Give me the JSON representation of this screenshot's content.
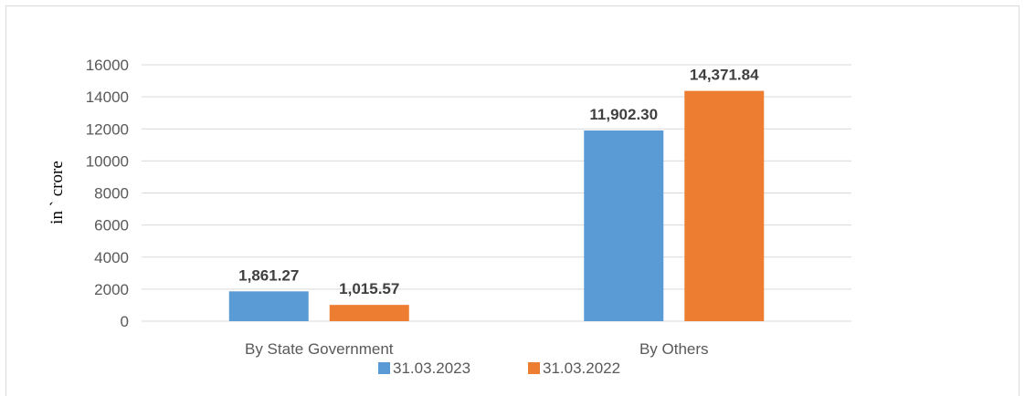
{
  "chart_data": {
    "type": "bar",
    "title": "",
    "xlabel": "",
    "ylabel": "in ` crore",
    "categories": [
      "By State Government",
      "By Others"
    ],
    "series": [
      {
        "name": "31.03.2023",
        "color": "#5b9bd5",
        "values": [
          1861.27,
          11902.3
        ],
        "labels": [
          "1,861.27",
          "11,902.30"
        ]
      },
      {
        "name": "31.03.2022",
        "color": "#ed7d31",
        "values": [
          1015.57,
          14371.84
        ],
        "labels": [
          "1,015.57",
          "14,371.84"
        ]
      }
    ],
    "ylim": [
      0,
      16000
    ],
    "yticks": [
      0,
      2000,
      4000,
      6000,
      8000,
      10000,
      12000,
      14000,
      16000
    ],
    "ytick_labels": [
      "0",
      "2000",
      "4000",
      "6000",
      "8000",
      "10000",
      "12000",
      "14000",
      "16000"
    ],
    "grid": true,
    "legend_position": "bottom"
  }
}
